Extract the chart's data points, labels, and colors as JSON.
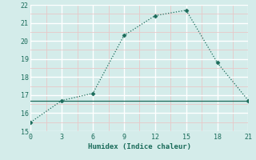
{
  "x": [
    0,
    3,
    6,
    9,
    12,
    15,
    18,
    21
  ],
  "y": [
    15.5,
    16.7,
    17.1,
    20.3,
    21.4,
    21.7,
    18.8,
    16.7
  ],
  "hline_y": 16.7,
  "xlabel": "Humidex (Indice chaleur)",
  "xlim": [
    0,
    21
  ],
  "ylim": [
    15,
    22
  ],
  "xticks": [
    0,
    3,
    6,
    9,
    12,
    15,
    18,
    21
  ],
  "yticks": [
    15,
    16,
    17,
    18,
    19,
    20,
    21,
    22
  ],
  "line_color": "#1a6b5a",
  "bg_color": "#d4ecea",
  "major_grid_color": "#ffffff",
  "minor_grid_color": "#e8c8c8"
}
